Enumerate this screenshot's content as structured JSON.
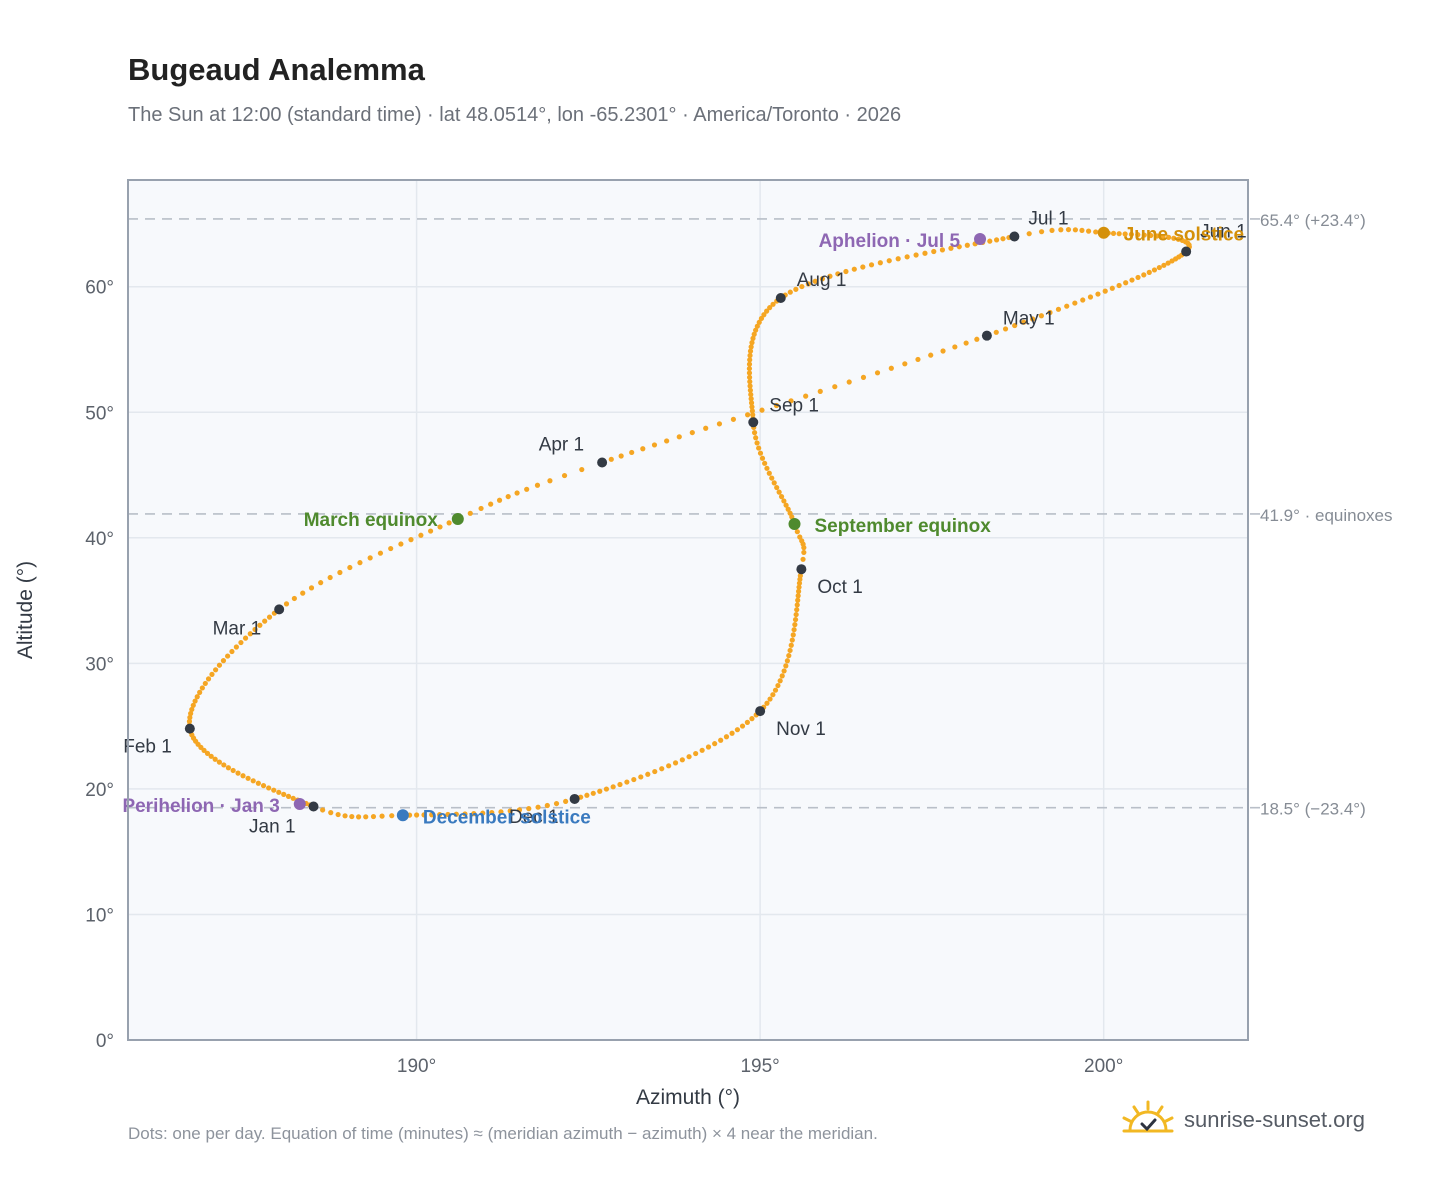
{
  "title": "Bugeaud Analemma",
  "subtitle": "The Sun at 12:00 (standard time) · lat 48.0514°, lon -65.2301° · America/Toronto · 2026",
  "footnote": "Dots: one per day. Equation of time (minutes) ≈ (meridian azimuth − azimuth) × 4 near the meridian.",
  "brand": {
    "name": "sunrise-sunset.org",
    "icon": "sun-check-icon"
  },
  "colors": {
    "curve": "#f5a623",
    "month_marker": "#333a44",
    "equinox": "#4f8a2e",
    "june_solstice": "#d4900a",
    "december_solstice": "#3a7abf",
    "apsis": "#8e67b3",
    "reference_line": "#b9bfc8",
    "plot_background": "#f7f9fc",
    "grid": "#e3e8ee"
  },
  "chart_data": {
    "type": "scatter",
    "xlabel": "Azimuth (°)",
    "ylabel": "Altitude (°)",
    "xlim": [
      185.8,
      202.1
    ],
    "ylim": [
      0,
      68.5
    ],
    "x_ticks": [
      190,
      195,
      200
    ],
    "x_tick_labels": [
      "190°",
      "195°",
      "200°"
    ],
    "y_ticks": [
      0,
      10,
      20,
      30,
      40,
      50,
      60
    ],
    "y_tick_labels": [
      "0°",
      "10°",
      "20°",
      "30°",
      "40°",
      "50°",
      "60°"
    ],
    "grid": true,
    "reference_lines": [
      {
        "y": 65.4,
        "label": "65.4° (+23.4°)"
      },
      {
        "y": 41.9,
        "label": "41.9° · equinoxes"
      },
      {
        "y": 18.5,
        "label": "18.5° (−23.4°)"
      }
    ],
    "analemma_waypoints": [
      {
        "day": 1,
        "az": 188.5,
        "alt": 18.6
      },
      {
        "day": 32,
        "az": 186.7,
        "alt": 24.8
      },
      {
        "day": 60,
        "az": 188.0,
        "alt": 34.3
      },
      {
        "day": 79,
        "az": 190.6,
        "alt": 41.5
      },
      {
        "day": 91,
        "az": 192.7,
        "alt": 46.0
      },
      {
        "day": 121,
        "az": 198.3,
        "alt": 56.1
      },
      {
        "day": 152,
        "az": 201.2,
        "alt": 62.8
      },
      {
        "day": 172,
        "az": 200.0,
        "alt": 64.3
      },
      {
        "day": 182,
        "az": 198.7,
        "alt": 64.0
      },
      {
        "day": 213,
        "az": 195.3,
        "alt": 59.1
      },
      {
        "day": 244,
        "az": 194.9,
        "alt": 49.2
      },
      {
        "day": 266,
        "az": 195.5,
        "alt": 41.1
      },
      {
        "day": 274,
        "az": 195.6,
        "alt": 37.5
      },
      {
        "day": 305,
        "az": 195.0,
        "alt": 26.2
      },
      {
        "day": 335,
        "az": 192.3,
        "alt": 19.2
      },
      {
        "day": 355,
        "az": 189.8,
        "alt": 17.9
      },
      {
        "day": 366,
        "az": 188.5,
        "alt": 18.6
      }
    ],
    "month_markers": [
      {
        "label": "Jan 1",
        "az": 188.5,
        "alt": 18.6
      },
      {
        "label": "Feb 1",
        "az": 186.7,
        "alt": 24.8
      },
      {
        "label": "Mar 1",
        "az": 188.0,
        "alt": 34.3
      },
      {
        "label": "Apr 1",
        "az": 192.7,
        "alt": 46.0
      },
      {
        "label": "May 1",
        "az": 198.3,
        "alt": 56.1
      },
      {
        "label": "Jun 1",
        "az": 201.2,
        "alt": 62.8
      },
      {
        "label": "Jul 1",
        "az": 198.7,
        "alt": 64.0
      },
      {
        "label": "Aug 1",
        "az": 195.3,
        "alt": 59.1
      },
      {
        "label": "Sep 1",
        "az": 194.9,
        "alt": 49.2
      },
      {
        "label": "Oct 1",
        "az": 195.6,
        "alt": 37.5
      },
      {
        "label": "Nov 1",
        "az": 195.0,
        "alt": 26.2
      },
      {
        "label": "Dec 1",
        "az": 192.3,
        "alt": 19.2
      }
    ],
    "events": [
      {
        "label": "March equinox",
        "az": 190.6,
        "alt": 41.5,
        "color_key": "equinox"
      },
      {
        "label": "September equinox",
        "az": 195.5,
        "alt": 41.1,
        "color_key": "equinox"
      },
      {
        "label": "June solstice",
        "az": 200.0,
        "alt": 64.3,
        "color_key": "june_solstice"
      },
      {
        "label": "December solstice",
        "az": 189.8,
        "alt": 17.9,
        "color_key": "december_solstice"
      },
      {
        "label": "Perihelion · Jan 3",
        "az": 188.3,
        "alt": 18.8,
        "color_key": "apsis"
      },
      {
        "label": "Aphelion · Jul 5",
        "az": 198.2,
        "alt": 63.8,
        "color_key": "apsis"
      }
    ]
  }
}
